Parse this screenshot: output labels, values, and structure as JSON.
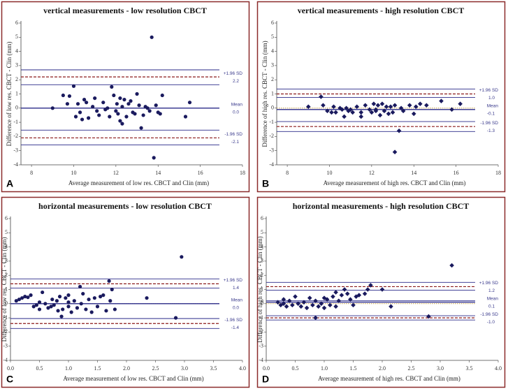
{
  "chart_data": [
    {
      "type": "scatter",
      "panel_label": "A",
      "title": "vertical measurements - low resolution CBCT",
      "xlabel": "Average measurement of low res. CBCT and Clin (mm)",
      "ylabel": "Difference of low res. CBCT - Clin (mm)",
      "xlim": [
        7.5,
        18
      ],
      "xticks": [
        8,
        10,
        12,
        14,
        16,
        18
      ],
      "ylim": [
        -4,
        6
      ],
      "yticks": [
        -4,
        -3,
        -2,
        -1,
        0,
        1,
        2,
        3,
        4,
        5,
        6
      ],
      "marker": "circle",
      "color": "#1a1a5e",
      "x": [
        9.0,
        9.5,
        9.7,
        9.8,
        10.0,
        10.1,
        10.2,
        10.3,
        10.4,
        10.5,
        10.6,
        10.7,
        10.9,
        11.0,
        11.1,
        11.2,
        11.4,
        11.5,
        11.6,
        11.7,
        11.8,
        11.9,
        12.0,
        12.05,
        12.1,
        12.2,
        12.2,
        12.3,
        12.3,
        12.4,
        12.5,
        12.6,
        12.7,
        12.8,
        12.9,
        13.0,
        13.1,
        13.2,
        13.3,
        13.4,
        13.5,
        13.7,
        13.8,
        13.9,
        14.0,
        14.1,
        14.2,
        15.3,
        15.5,
        13.6
      ],
      "y": [
        0.0,
        0.9,
        0.3,
        0.85,
        1.55,
        -0.6,
        0.3,
        -0.3,
        -0.8,
        0.6,
        0.4,
        -0.7,
        0.1,
        0.7,
        -0.2,
        -0.5,
        0.4,
        -0.1,
        0.0,
        -0.6,
        1.5,
        0.9,
        -0.2,
        0.3,
        -0.4,
        0.7,
        -0.9,
        -1.1,
        0.1,
        0.6,
        -0.6,
        0.3,
        0.5,
        -0.3,
        -0.4,
        1.0,
        0.2,
        -1.4,
        -0.5,
        0.1,
        0.0,
        5.0,
        -3.5,
        0.2,
        -0.3,
        -0.4,
        0.9,
        -0.6,
        0.4,
        -0.2
      ],
      "limits": [
        {
          "label": "+1.96 SD",
          "value": 2.2,
          "color": "#8b1a1a",
          "dashed": true
        },
        {
          "label": "Mean",
          "value": 0,
          "value_label": "0.0",
          "color": "#2a2a8a",
          "dashed": false
        },
        {
          "label": "-1.96 SD",
          "value": -2.1,
          "color": "#8b1a1a",
          "dashed": true
        }
      ],
      "ci_lines": [
        2.7,
        1.65,
        -1.55,
        -2.6
      ],
      "ci_color": "#2a2a8a",
      "zero_line": false
    },
    {
      "type": "scatter",
      "panel_label": "B",
      "title": "vertical measurements - high resolution CBCT",
      "xlabel": "Average measurement of high res. CBCT and Clin (mm)",
      "ylabel": "Difference of high res. CBCT - Clin (mm)",
      "xlim": [
        7.5,
        18
      ],
      "xticks": [
        8,
        10,
        12,
        14,
        16,
        18
      ],
      "ylim": [
        -4,
        6
      ],
      "yticks": [
        -4,
        -3,
        -2,
        -1,
        0,
        1,
        2,
        3,
        4,
        5,
        6
      ],
      "marker": "diamond",
      "color": "#1a1a5e",
      "x": [
        9.0,
        9.6,
        9.7,
        9.9,
        10.1,
        10.2,
        10.3,
        10.5,
        10.6,
        10.7,
        10.8,
        10.9,
        11.0,
        11.1,
        11.3,
        11.5,
        11.5,
        11.7,
        11.9,
        12.0,
        12.1,
        12.2,
        12.3,
        12.4,
        12.5,
        12.6,
        12.7,
        12.8,
        12.9,
        13.0,
        13.1,
        13.1,
        13.3,
        13.4,
        13.5,
        13.8,
        14.0,
        14.1,
        14.3,
        14.6,
        15.3,
        15.8,
        16.2,
        12.2
      ],
      "y": [
        0.1,
        0.8,
        0.2,
        -0.2,
        -0.3,
        0.1,
        -0.3,
        0.0,
        -0.1,
        -0.6,
        0.0,
        -0.2,
        -0.1,
        -0.3,
        0.1,
        -0.3,
        -0.6,
        0.2,
        -0.1,
        -0.3,
        0.3,
        -0.1,
        0.2,
        -0.5,
        0.3,
        -0.2,
        0.1,
        -0.4,
        0.1,
        -0.3,
        0.2,
        -3.1,
        -1.6,
        0.0,
        -0.2,
        0.2,
        -0.4,
        0.1,
        0.3,
        0.2,
        0.5,
        -0.1,
        0.3,
        -0.2
      ],
      "limits": [
        {
          "label": "+1.96 SD",
          "value": 1,
          "value_label": "1.0",
          "color": "#8b1a1a",
          "dashed": true
        },
        {
          "label": "Mean",
          "value": -0.1,
          "color": "#2a2a8a",
          "dashed": false
        },
        {
          "label": "-1.96 SD",
          "value": -1.3,
          "color": "#8b1a1a",
          "dashed": true
        }
      ],
      "ci_lines": [
        1.35,
        0.75,
        -0.95,
        -1.65
      ],
      "ci_color": "#2a2a8a",
      "zero_line": true
    },
    {
      "type": "scatter",
      "panel_label": "C",
      "title": "horizontal measurements - low resolution CBCT",
      "xlabel": "Average measurement of low res. CBCT and Clin (mm)",
      "ylabel": "Difference of low res. CBCT - Clin (mm)",
      "xlim": [
        0,
        4
      ],
      "xticks": [
        {
          "value": 0,
          "label": "0.0"
        },
        0.5,
        {
          "value": 1,
          "label": "1.0"
        },
        1.5,
        {
          "value": 2,
          "label": "2.0"
        },
        2.5,
        {
          "value": 3,
          "label": "3.0"
        },
        3.5,
        {
          "value": 4,
          "label": "4.0"
        }
      ],
      "ylim": [
        -4,
        6
      ],
      "yticks": [
        -4,
        -3,
        -2,
        -1,
        0,
        1,
        2,
        3,
        4,
        5,
        6
      ],
      "marker": "circle",
      "color": "#1a1a5e",
      "x": [
        0.1,
        0.15,
        0.2,
        0.25,
        0.3,
        0.35,
        0.4,
        0.45,
        0.5,
        0.55,
        0.6,
        0.65,
        0.7,
        0.72,
        0.75,
        0.8,
        0.82,
        0.85,
        0.88,
        0.9,
        0.95,
        1.0,
        1.0,
        1.05,
        1.1,
        1.15,
        1.2,
        1.22,
        1.25,
        1.3,
        1.35,
        1.4,
        1.45,
        1.5,
        1.55,
        1.6,
        1.65,
        1.7,
        1.72,
        1.75,
        1.8,
        2.35,
        2.85,
        2.95,
        0.5,
        1.0
      ],
      "y": [
        0.2,
        0.3,
        0.4,
        0.5,
        0.45,
        0.6,
        -0.2,
        -0.1,
        0.1,
        0.8,
        0.0,
        -0.3,
        -0.2,
        0.3,
        -0.1,
        0.2,
        -0.5,
        0.5,
        -0.9,
        -0.4,
        0.4,
        -0.2,
        0.6,
        -0.6,
        0.2,
        -0.3,
        1.2,
        0.0,
        0.7,
        -0.4,
        0.3,
        -0.6,
        0.4,
        -0.2,
        0.5,
        0.6,
        -0.5,
        1.6,
        0.2,
        1.0,
        -0.4,
        0.4,
        -1.0,
        3.3,
        -0.4,
        0.1
      ],
      "limits": [
        {
          "label": "+1.96 SD",
          "value": 1.4,
          "color": "#8b1a1a",
          "dashed": true
        },
        {
          "label": "Mean",
          "value": 0,
          "value_label": "0.0",
          "color": "#2a2a8a",
          "dashed": false
        },
        {
          "label": "-1.96 SD",
          "value": -1.4,
          "color": "#8b1a1a",
          "dashed": true
        }
      ],
      "ci_lines": [
        1.75,
        1.1,
        -1.05,
        -1.75
      ],
      "ci_color": "#2a2a8a",
      "zero_line": true
    },
    {
      "type": "scatter",
      "panel_label": "D",
      "title": "horizontal measurements - high resolution CBCT",
      "xlabel": "Average measurement of high res. CBCT and Clin (mm)",
      "ylabel": "Difference of high res. CBCT - Clin (mm)",
      "xlim": [
        0,
        4
      ],
      "xticks": [
        {
          "value": 0,
          "label": "0.0"
        },
        0.5,
        {
          "value": 1,
          "label": "1.0"
        },
        1.5,
        {
          "value": 2,
          "label": "2.0"
        },
        2.5,
        {
          "value": 3,
          "label": "3.0"
        },
        3.5,
        {
          "value": 4,
          "label": "4.0"
        }
      ],
      "ylim": [
        -4,
        6
      ],
      "yticks": [
        -4,
        -3,
        -2,
        -1,
        0,
        1,
        2,
        3,
        4,
        5,
        6
      ],
      "marker": "diamond",
      "color": "#1a1a5e",
      "x": [
        0.2,
        0.25,
        0.3,
        0.35,
        0.4,
        0.45,
        0.5,
        0.55,
        0.6,
        0.65,
        0.7,
        0.75,
        0.8,
        0.85,
        0.9,
        0.95,
        1.0,
        1.05,
        1.1,
        1.15,
        1.2,
        1.2,
        1.25,
        1.3,
        1.35,
        1.4,
        1.45,
        1.5,
        1.55,
        1.6,
        1.7,
        1.75,
        1.8,
        2.0,
        2.15,
        2.8,
        3.2,
        0.85,
        0.3,
        1.0
      ],
      "y": [
        0.1,
        -0.1,
        0.3,
        -0.2,
        0.2,
        -0.1,
        0.5,
        0.0,
        -0.2,
        0.1,
        -0.3,
        0.4,
        -0.1,
        0.2,
        -0.2,
        0.0,
        -0.3,
        0.3,
        -0.1,
        0.5,
        0.8,
        -0.2,
        0.2,
        0.6,
        1.0,
        0.7,
        0.3,
        -0.1,
        0.5,
        0.6,
        0.7,
        1.0,
        1.3,
        1.0,
        -0.2,
        -0.9,
        2.7,
        -1.0,
        0.0,
        0.4
      ],
      "limits": [
        {
          "label": "+1.96 SD",
          "value": 1.2,
          "color": "#8b1a1a",
          "dashed": true
        },
        {
          "label": "Mean",
          "value": 0.1,
          "color": "#2a2a8a",
          "dashed": false
        },
        {
          "label": "-1.96 SD",
          "value": -1,
          "value_label": "-1.0",
          "color": "#8b1a1a",
          "dashed": true
        }
      ],
      "ci_lines": [
        1.5,
        0.95,
        0.2,
        -0.85,
        -1.15
      ],
      "ci_color": "#2a2a8a",
      "zero_line": true
    }
  ]
}
